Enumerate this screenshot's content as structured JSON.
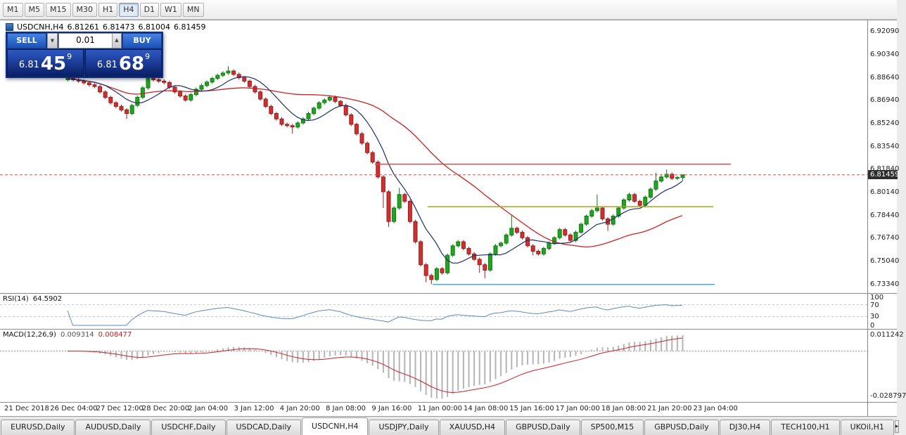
{
  "toolbar": {
    "timeframes": [
      {
        "label": "M1",
        "active": false
      },
      {
        "label": "M5",
        "active": false
      },
      {
        "label": "M15",
        "active": false
      },
      {
        "label": "M30",
        "active": false
      },
      {
        "label": "H1",
        "active": false
      },
      {
        "label": "H4",
        "active": true
      },
      {
        "label": "D1",
        "active": false
      },
      {
        "label": "W1",
        "active": false
      },
      {
        "label": "MN",
        "active": false
      }
    ]
  },
  "trade_panel": {
    "sell_label": "SELL",
    "buy_label": "BUY",
    "volume": "0.01",
    "dropdown_glyph": "▼",
    "spinner_glyph": "▲",
    "sell_price": {
      "prefix": "6.81",
      "big": "45",
      "sup": "9"
    },
    "buy_price": {
      "prefix": "6.81",
      "big": "68",
      "sup": "9"
    }
  },
  "colors": {
    "up": "#1fa51f",
    "up_border": "#0f7a0f",
    "down": "#d03030",
    "down_border": "#991d1d",
    "price_line": "#e04848",
    "rsi_level": "#b9c8da",
    "macd_zero": "#9a9a9a"
  },
  "chart_data": {
    "type": "candlestick",
    "title": "USDCNH,H4",
    "ohlc_display": [
      "6.81261",
      "6.81473",
      "6.81004",
      "6.81459"
    ],
    "current_price": "6.81459",
    "price_axis_ticks": [
      "6.92090",
      "6.90340",
      "6.88640",
      "6.86940",
      "6.85240",
      "6.83540",
      "6.81840",
      "6.80140",
      "6.78440",
      "6.76740",
      "6.75040",
      "6.73340"
    ],
    "time_axis_labels": [
      "21 Dec 2018",
      "26 Dec 04:00",
      "27 Dec 12:00",
      "28 Dec 20:00",
      "2 Jan 04:00",
      "3 Jan 12:00",
      "4 Jan 20:00",
      "8 Jan 08:00",
      "9 Jan 16:00",
      "11 Jan 00:00",
      "14 Jan 08:00",
      "15 Jan 16:00",
      "17 Jan 00:00",
      "18 Jan 08:00",
      "21 Jan 20:00",
      "23 Jan 04:00"
    ],
    "overlays": {
      "ma_fast": {
        "period": 8,
        "color": "#1c2f6e"
      },
      "ma_slow": {
        "period": 34,
        "color": "#cc2222"
      }
    },
    "hlines": [
      {
        "price": 6.8225,
        "color": "#cd4f4f",
        "x1_frac": 0.432,
        "x2_frac": 0.843
      },
      {
        "price": 6.791,
        "color": "#a3a816",
        "x1_frac": 0.493,
        "x2_frac": 0.822
      },
      {
        "price": 6.7334,
        "color": "#49a8e8",
        "x1_frac": 0.499,
        "x2_frac": 0.824
      }
    ],
    "indicators": [
      {
        "name": "RSI",
        "label": "RSI(14)",
        "value": "64.5902",
        "period": 14,
        "levels": [
          70,
          30
        ],
        "axis_labels": [
          "100",
          "70",
          "30",
          "0"
        ],
        "axis_values": [
          100,
          70,
          30,
          0
        ],
        "line_color": "#5a8abf"
      },
      {
        "name": "MACD",
        "label": "MACD(12,26,9)",
        "values": [
          "0.009314",
          "0.008477"
        ],
        "fast": 12,
        "slow": 26,
        "signal": 9,
        "axis_labels": [
          "0.011242",
          "-0.028797"
        ],
        "hist_color": "#b4b4b4",
        "signal_color": "#cc2222"
      }
    ],
    "candles": [
      [
        6.885,
        6.8873,
        6.8837,
        6.886
      ],
      [
        6.886,
        6.8873,
        6.8837,
        6.885
      ],
      [
        6.885,
        6.8863,
        6.8827,
        6.884
      ],
      [
        6.884,
        6.8853,
        6.8814,
        6.8827
      ],
      [
        6.8827,
        6.884,
        6.88,
        6.8813
      ],
      [
        6.8813,
        6.8826,
        6.8787,
        6.88
      ],
      [
        6.88,
        6.8813,
        6.8747,
        6.876
      ],
      [
        6.876,
        6.8773,
        6.8707,
        6.872
      ],
      [
        6.872,
        6.8733,
        6.8667,
        6.868
      ],
      [
        6.868,
        6.8693,
        6.864,
        6.8653
      ],
      [
        6.8653,
        6.8666,
        6.8614,
        6.8627
      ],
      [
        6.8627,
        6.864,
        6.856,
        6.86
      ],
      [
        6.86,
        6.8673,
        6.8587,
        6.866
      ],
      [
        6.866,
        6.8733,
        6.8647,
        6.872
      ],
      [
        6.872,
        6.8803,
        6.8707,
        6.879
      ],
      [
        6.879,
        6.8873,
        6.8777,
        6.886
      ],
      [
        6.886,
        6.8873,
        6.8837,
        6.885
      ],
      [
        6.885,
        6.8863,
        6.8827,
        6.884
      ],
      [
        6.884,
        6.8853,
        6.8817,
        6.883
      ],
      [
        6.883,
        6.8843,
        6.8782,
        6.8795
      ],
      [
        6.8795,
        6.8808,
        6.8747,
        6.876
      ],
      [
        6.876,
        6.8773,
        6.8717,
        6.873
      ],
      [
        6.873,
        6.8743,
        6.8687,
        6.87
      ],
      [
        6.87,
        6.8753,
        6.8687,
        6.874
      ],
      [
        6.874,
        6.8793,
        6.8727,
        6.878
      ],
      [
        6.878,
        6.882,
        6.8767,
        6.8807
      ],
      [
        6.8807,
        6.8846,
        6.8794,
        6.8833
      ],
      [
        6.8833,
        6.8873,
        6.882,
        6.886
      ],
      [
        6.886,
        6.8896,
        6.8847,
        6.8883
      ],
      [
        6.8883,
        6.8913,
        6.887,
        6.89
      ],
      [
        6.89,
        6.895,
        6.8887,
        6.8915
      ],
      [
        6.8915,
        6.8928,
        6.8877,
        6.889
      ],
      [
        6.889,
        6.8903,
        6.8852,
        6.8865
      ],
      [
        6.8865,
        6.8878,
        6.8827,
        6.884
      ],
      [
        6.884,
        6.8853,
        6.8787,
        6.88
      ],
      [
        6.88,
        6.8813,
        6.8747,
        6.876
      ],
      [
        6.876,
        6.8773,
        6.8694,
        6.8707
      ],
      [
        6.8707,
        6.872,
        6.864,
        6.8653
      ],
      [
        6.8653,
        6.8666,
        6.8587,
        6.86
      ],
      [
        6.86,
        6.8613,
        6.8547,
        6.856
      ],
      [
        6.856,
        6.8573,
        6.8507,
        6.852
      ],
      [
        6.852,
        6.8533,
        6.8497,
        6.851
      ],
      [
        6.851,
        6.8523,
        6.845,
        6.85
      ],
      [
        6.85,
        6.8543,
        6.8487,
        6.853
      ],
      [
        6.853,
        6.8573,
        6.8517,
        6.856
      ],
      [
        6.856,
        6.8613,
        6.8547,
        6.86
      ],
      [
        6.86,
        6.8653,
        6.8587,
        6.864
      ],
      [
        6.864,
        6.8693,
        6.8627,
        6.868
      ],
      [
        6.868,
        6.8713,
        6.8667,
        6.87
      ],
      [
        6.87,
        6.8733,
        6.8687,
        6.872
      ],
      [
        6.872,
        6.8733,
        6.8677,
        6.869
      ],
      [
        6.869,
        6.8703,
        6.8647,
        6.866
      ],
      [
        6.866,
        6.8673,
        6.8577,
        6.859
      ],
      [
        6.859,
        6.8603,
        6.8507,
        6.852
      ],
      [
        6.852,
        6.8533,
        6.8437,
        6.845
      ],
      [
        6.845,
        6.8463,
        6.8367,
        6.838
      ],
      [
        6.838,
        6.8393,
        6.8297,
        6.831
      ],
      [
        6.831,
        6.8323,
        6.8227,
        6.824
      ],
      [
        6.824,
        6.8253,
        6.8117,
        6.813
      ],
      [
        6.813,
        6.8143,
        6.79,
        6.802
      ],
      [
        6.802,
        6.8033,
        6.776,
        6.78
      ],
      [
        6.78,
        6.7913,
        6.7787,
        6.79
      ],
      [
        6.79,
        6.805,
        6.7887,
        6.8
      ],
      [
        6.8,
        6.8013,
        6.7937,
        6.795
      ],
      [
        6.795,
        6.7963,
        6.7787,
        6.78
      ],
      [
        6.78,
        6.7813,
        6.7637,
        6.765
      ],
      [
        6.765,
        6.7663,
        6.7467,
        6.748
      ],
      [
        6.748,
        6.7493,
        6.735,
        6.74
      ],
      [
        6.74,
        6.7413,
        6.7335,
        6.737
      ],
      [
        6.737,
        6.7463,
        6.7357,
        6.745
      ],
      [
        6.745,
        6.7463,
        6.7407,
        6.742
      ],
      [
        6.742,
        6.7563,
        6.7407,
        6.755
      ],
      [
        6.755,
        6.7633,
        6.7537,
        6.762
      ],
      [
        6.762,
        6.7663,
        6.7607,
        6.765
      ],
      [
        6.765,
        6.7663,
        6.7587,
        6.76
      ],
      [
        6.76,
        6.7613,
        6.7547,
        6.756
      ],
      [
        6.756,
        6.7573,
        6.7507,
        6.752
      ],
      [
        6.752,
        6.7533,
        6.742,
        6.748
      ],
      [
        6.748,
        6.7493,
        6.738,
        6.744
      ],
      [
        6.744,
        6.7573,
        6.7427,
        6.756
      ],
      [
        6.756,
        6.7633,
        6.7547,
        6.762
      ],
      [
        6.762,
        6.7653,
        6.7607,
        6.764
      ],
      [
        6.764,
        6.7713,
        6.7627,
        6.77
      ],
      [
        6.77,
        6.785,
        6.7687,
        6.775
      ],
      [
        6.775,
        6.7763,
        6.7707,
        6.772
      ],
      [
        6.772,
        6.7733,
        6.7667,
        6.768
      ],
      [
        6.768,
        6.7693,
        6.7607,
        6.762
      ],
      [
        6.762,
        6.7633,
        6.755,
        6.758
      ],
      [
        6.758,
        6.7593,
        6.7547,
        6.756
      ],
      [
        6.756,
        6.7613,
        6.7547,
        6.76
      ],
      [
        6.76,
        6.7653,
        6.7587,
        6.764
      ],
      [
        6.764,
        6.7693,
        6.7627,
        6.768
      ],
      [
        6.768,
        6.7753,
        6.7667,
        6.774
      ],
      [
        6.774,
        6.7753,
        6.7687,
        6.77
      ],
      [
        6.77,
        6.7713,
        6.7647,
        6.766
      ],
      [
        6.766,
        6.7733,
        6.7647,
        6.772
      ],
      [
        6.772,
        6.7793,
        6.7707,
        6.778
      ],
      [
        6.778,
        6.7853,
        6.7767,
        6.784
      ],
      [
        6.784,
        6.7893,
        6.7827,
        6.788
      ],
      [
        6.788,
        6.8,
        6.7867,
        6.79
      ],
      [
        6.79,
        6.7913,
        6.7807,
        6.782
      ],
      [
        6.782,
        6.7833,
        6.773,
        6.778
      ],
      [
        6.778,
        6.7853,
        6.7767,
        6.784
      ],
      [
        6.784,
        6.7913,
        6.7827,
        6.79
      ],
      [
        6.79,
        6.7973,
        6.7887,
        6.796
      ],
      [
        6.796,
        6.8013,
        6.7947,
        6.8
      ],
      [
        6.8,
        6.8013,
        6.7937,
        6.795
      ],
      [
        6.795,
        6.7963,
        6.7907,
        6.792
      ],
      [
        6.792,
        6.7993,
        6.7907,
        6.798
      ],
      [
        6.798,
        6.8053,
        6.7967,
        6.804
      ],
      [
        6.804,
        6.816,
        6.8027,
        6.81
      ],
      [
        6.81,
        6.8143,
        6.8087,
        6.813
      ],
      [
        6.813,
        6.8185,
        6.8117,
        6.815
      ],
      [
        6.815,
        6.8163,
        6.8107,
        6.812
      ],
      [
        6.812,
        6.8139,
        6.8107,
        6.8126
      ],
      [
        6.8126,
        6.8147,
        6.81,
        6.8146
      ]
    ]
  },
  "tabs": {
    "items": [
      {
        "label": "EURUSD,Daily",
        "active": false
      },
      {
        "label": "AUDUSD,Daily",
        "active": false
      },
      {
        "label": "USDCHF,Daily",
        "active": false
      },
      {
        "label": "USDCAD,Daily",
        "active": false
      },
      {
        "label": "USDCNH,H4",
        "active": true
      },
      {
        "label": "USDJPY,Daily",
        "active": false
      },
      {
        "label": "XAUUSD,H4",
        "active": false
      },
      {
        "label": "GBPUSD,Daily",
        "active": false
      },
      {
        "label": "SP500,M15",
        "active": false
      },
      {
        "label": "GBPUSD,Daily",
        "active": false
      },
      {
        "label": "DJ30,H4",
        "active": false
      },
      {
        "label": "TECH100,H1",
        "active": false
      },
      {
        "label": "UKOil,H1",
        "active": false
      }
    ],
    "scroll_right_glyph": "▸"
  }
}
